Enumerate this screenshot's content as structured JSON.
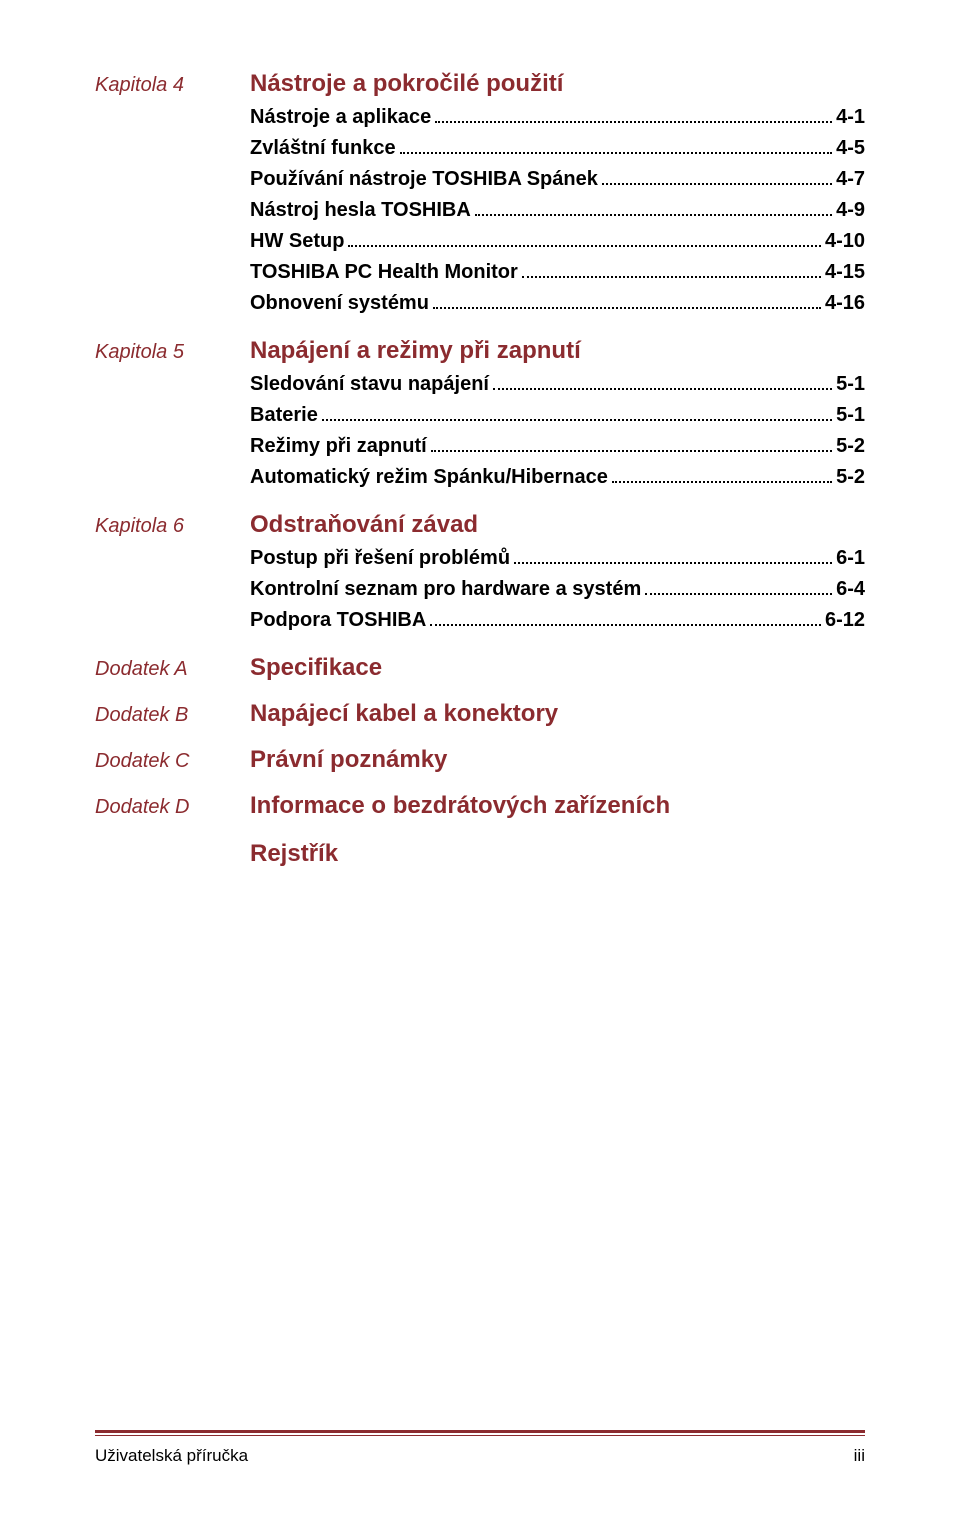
{
  "colors": {
    "heading": "#8b2b2f",
    "body_text": "#000000",
    "background": "#ffffff",
    "rule": "#8b2b2f"
  },
  "typography": {
    "chapter_label_fontsize": 20,
    "chapter_label_style": "italic",
    "chapter_title_fontsize": 24,
    "chapter_title_weight": "bold",
    "entry_fontsize": 20,
    "entry_weight": "bold",
    "footer_fontsize": 17
  },
  "chapters": [
    {
      "label": "Kapitola 4",
      "title": "Nástroje a pokročilé použití",
      "entries": [
        {
          "text": "Nástroje a aplikace",
          "page": "4-1"
        },
        {
          "text": "Zvláštní funkce",
          "page": "4-5"
        },
        {
          "text": "Používání nástroje TOSHIBA Spánek",
          "page": "4-7"
        },
        {
          "text": "Nástroj hesla TOSHIBA",
          "page": "4-9"
        },
        {
          "text": "HW Setup",
          "page": "4-10"
        },
        {
          "text": "TOSHIBA PC Health Monitor",
          "page": "4-15"
        },
        {
          "text": "Obnovení systému",
          "page": "4-16"
        }
      ]
    },
    {
      "label": "Kapitola 5",
      "title": "Napájení a režimy při zapnutí",
      "entries": [
        {
          "text": "Sledování stavu napájení",
          "page": "5-1"
        },
        {
          "text": "Baterie",
          "page": "5-1"
        },
        {
          "text": "Režimy při zapnutí",
          "page": "5-2"
        },
        {
          "text": "Automatický režim Spánku/Hibernace",
          "page": "5-2"
        }
      ]
    },
    {
      "label": "Kapitola 6",
      "title": "Odstraňování závad",
      "entries": [
        {
          "text": "Postup při řešení problémů",
          "page": "6-1"
        },
        {
          "text": "Kontrolní seznam pro hardware a systém",
          "page": "6-4"
        },
        {
          "text": "Podpora TOSHIBA",
          "page": "6-12"
        }
      ]
    },
    {
      "label": "Dodatek A",
      "title": "Specifikace",
      "entries": []
    },
    {
      "label": "Dodatek B",
      "title": "Napájecí kabel a konektory",
      "entries": []
    },
    {
      "label": "Dodatek C",
      "title": "Právní poznámky",
      "entries": []
    },
    {
      "label": "Dodatek D",
      "title": "Informace o bezdrátových zařízeních",
      "entries": []
    }
  ],
  "extra_section": "Rejstřík",
  "footer": {
    "left": "Uživatelská příručka",
    "right": "iii"
  }
}
